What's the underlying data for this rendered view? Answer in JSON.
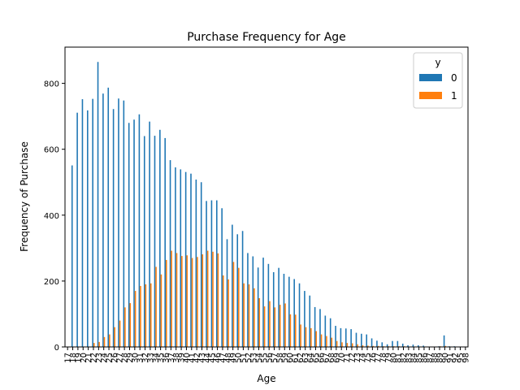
{
  "chart_data": {
    "type": "bar",
    "title": "Purchase Frequency for Age",
    "xlabel": "Age",
    "ylabel": "Frequency of Purchase",
    "ylim": [
      0,
      910
    ],
    "yticks": [
      0,
      200,
      400,
      600,
      800
    ],
    "legend": {
      "title": "y",
      "placement": "top-right"
    },
    "colors": {
      "0": "#1f77b4",
      "1": "#ff7f0e"
    },
    "categories": [
      "17",
      "18",
      "19",
      "20",
      "21",
      "22",
      "23",
      "24",
      "25",
      "26",
      "27",
      "28",
      "29",
      "30",
      "31",
      "32",
      "33",
      "34",
      "35",
      "36",
      "37",
      "38",
      "39",
      "40",
      "41",
      "42",
      "43",
      "44",
      "45",
      "46",
      "47",
      "48",
      "49",
      "50",
      "51",
      "52",
      "53",
      "54",
      "55",
      "56",
      "57",
      "58",
      "59",
      "60",
      "61",
      "62",
      "63",
      "64",
      "65",
      "66",
      "67",
      "68",
      "69",
      "70",
      "71",
      "72",
      "73",
      "74",
      "75",
      "76",
      "77",
      "78",
      "79",
      "80",
      "81",
      "82",
      "83",
      "84",
      "85",
      "86",
      "87",
      "88",
      "89",
      "90",
      "91",
      "92",
      "95",
      "98"
    ],
    "series": [
      {
        "name": "0",
        "values": [
          0,
          551,
          711,
          752,
          718,
          753,
          865,
          769,
          787,
          722,
          754,
          748,
          680,
          690,
          706,
          640,
          684,
          641,
          659,
          634,
          567,
          545,
          539,
          531,
          526,
          508,
          500,
          443,
          445,
          445,
          421,
          327,
          371,
          342,
          352,
          285,
          275,
          241,
          271,
          252,
          227,
          240,
          222,
          213,
          206,
          193,
          170,
          156,
          121,
          115,
          95,
          87,
          64,
          57,
          56,
          54,
          43,
          40,
          38,
          26,
          19,
          14,
          8,
          18,
          18,
          10,
          5,
          7,
          5,
          4,
          1,
          1,
          2,
          35,
          2,
          2,
          0,
          0
        ]
      },
      {
        "name": "1",
        "values": [
          0,
          0,
          0,
          0,
          0,
          12,
          15,
          30,
          38,
          60,
          80,
          120,
          133,
          170,
          185,
          190,
          193,
          243,
          220,
          264,
          292,
          285,
          276,
          278,
          270,
          273,
          281,
          292,
          289,
          284,
          217,
          205,
          258,
          240,
          193,
          190,
          178,
          148,
          123,
          139,
          120,
          128,
          132,
          99,
          98,
          68,
          60,
          57,
          48,
          38,
          33,
          28,
          18,
          14,
          12,
          11,
          8,
          5,
          4,
          3,
          3,
          2,
          2,
          2,
          2,
          2,
          1,
          1,
          1,
          1,
          1,
          1,
          2,
          3,
          0,
          0,
          0,
          0
        ]
      }
    ]
  }
}
